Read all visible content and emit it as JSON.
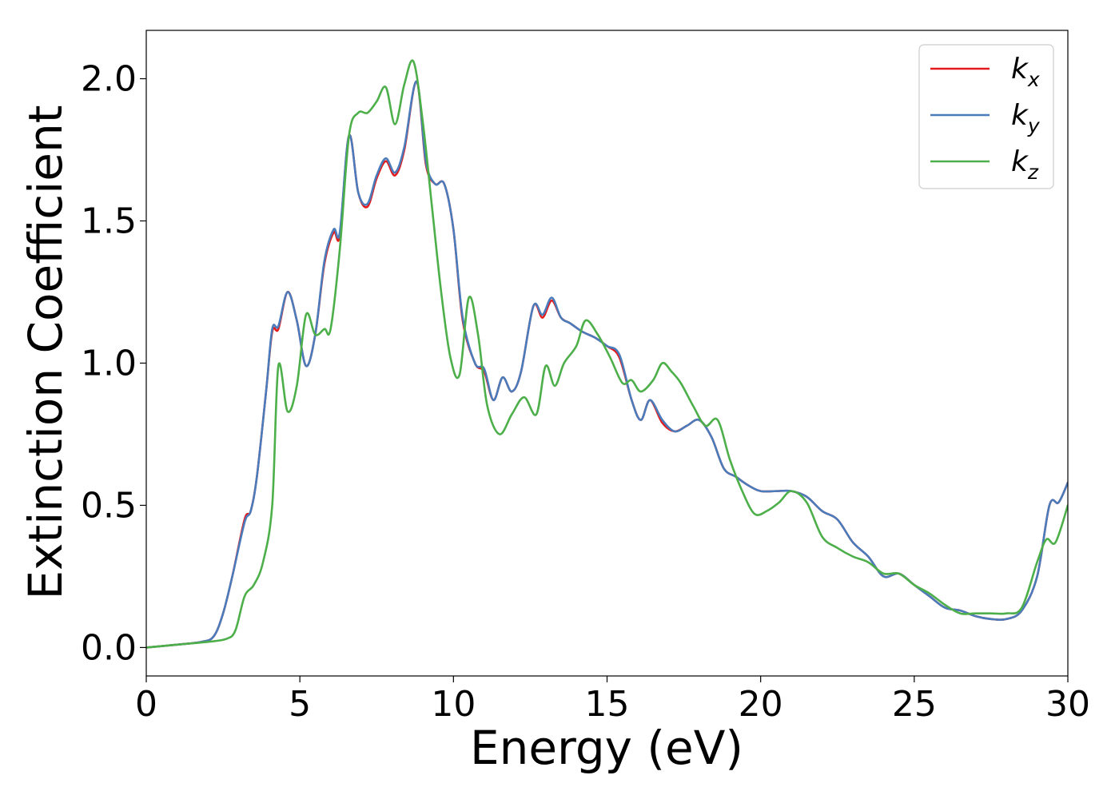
{
  "chart_data": {
    "type": "line",
    "title": "",
    "xlabel": "Energy (eV)",
    "ylabel": "Extinction Coefficient",
    "xlim": [
      0,
      30
    ],
    "ylim": [
      -0.1,
      2.17
    ],
    "xticks": [
      "0",
      "5",
      "10",
      "15",
      "20",
      "25",
      "30"
    ],
    "yticks": [
      "0.0",
      "0.5",
      "1.0",
      "1.5",
      "2.0"
    ],
    "grid": false,
    "legend_position": "top-right",
    "series": [
      {
        "name": "k_x",
        "label_main": "k",
        "label_sub": "x",
        "color": "#e41a1c",
        "x": [
          0,
          1,
          1.8,
          2.2,
          2.5,
          2.8,
          3.2,
          3.4,
          3.6,
          3.9,
          4.1,
          4.3,
          4.6,
          4.9,
          5.2,
          5.5,
          5.8,
          6.1,
          6.3,
          6.6,
          6.9,
          7.2,
          7.5,
          7.8,
          8.1,
          8.4,
          8.8,
          9.1,
          9.4,
          9.7,
          10.0,
          10.3,
          10.7,
          11.0,
          11.3,
          11.6,
          11.9,
          12.2,
          12.6,
          12.9,
          13.2,
          13.5,
          13.8,
          14.2,
          14.6,
          15.0,
          15.4,
          15.8,
          16.1,
          16.4,
          16.8,
          17.2,
          17.6,
          18.0,
          18.4,
          18.8,
          19.2,
          19.6,
          20.0,
          20.5,
          21.0,
          21.5,
          22.0,
          22.5,
          23.0,
          23.5,
          24.0,
          24.5,
          25.0,
          25.5,
          26.0,
          26.5,
          27.0,
          27.5,
          28.0,
          28.5,
          29.0,
          29.4,
          29.7,
          30.0
        ],
        "values": [
          0.0,
          0.01,
          0.02,
          0.04,
          0.12,
          0.25,
          0.45,
          0.48,
          0.6,
          0.9,
          1.11,
          1.12,
          1.25,
          1.15,
          0.99,
          1.1,
          1.35,
          1.46,
          1.45,
          1.8,
          1.6,
          1.55,
          1.65,
          1.71,
          1.66,
          1.75,
          1.99,
          1.7,
          1.63,
          1.63,
          1.47,
          1.15,
          1.0,
          0.97,
          0.87,
          0.95,
          0.9,
          0.97,
          1.2,
          1.16,
          1.22,
          1.16,
          1.14,
          1.11,
          1.09,
          1.06,
          1.02,
          0.87,
          0.8,
          0.87,
          0.79,
          0.76,
          0.78,
          0.8,
          0.74,
          0.63,
          0.6,
          0.57,
          0.55,
          0.55,
          0.55,
          0.53,
          0.48,
          0.45,
          0.37,
          0.32,
          0.25,
          0.26,
          0.22,
          0.18,
          0.14,
          0.13,
          0.11,
          0.1,
          0.1,
          0.13,
          0.25,
          0.5,
          0.51,
          0.58
        ]
      },
      {
        "name": "k_y",
        "label_main": "k",
        "label_sub": "y",
        "color": "#4a7bbb",
        "x": [
          0,
          1,
          1.8,
          2.2,
          2.5,
          2.8,
          3.2,
          3.4,
          3.6,
          3.9,
          4.1,
          4.3,
          4.6,
          4.9,
          5.2,
          5.5,
          5.8,
          6.1,
          6.3,
          6.6,
          6.9,
          7.2,
          7.5,
          7.8,
          8.1,
          8.4,
          8.8,
          9.1,
          9.4,
          9.7,
          10.0,
          10.3,
          10.7,
          11.0,
          11.3,
          11.6,
          11.9,
          12.2,
          12.6,
          12.9,
          13.2,
          13.5,
          13.8,
          14.2,
          14.6,
          15.0,
          15.4,
          15.8,
          16.1,
          16.4,
          16.8,
          17.2,
          17.6,
          18.0,
          18.4,
          18.8,
          19.2,
          19.6,
          20.0,
          20.5,
          21.0,
          21.5,
          22.0,
          22.5,
          23.0,
          23.5,
          24.0,
          24.5,
          25.0,
          25.5,
          26.0,
          26.5,
          27.0,
          27.5,
          28.0,
          28.5,
          29.0,
          29.4,
          29.7,
          30.0
        ],
        "values": [
          0.0,
          0.01,
          0.02,
          0.04,
          0.12,
          0.25,
          0.44,
          0.48,
          0.6,
          0.9,
          1.12,
          1.13,
          1.25,
          1.15,
          0.99,
          1.1,
          1.36,
          1.47,
          1.46,
          1.8,
          1.6,
          1.56,
          1.66,
          1.72,
          1.67,
          1.76,
          1.99,
          1.71,
          1.63,
          1.63,
          1.47,
          1.16,
          1.0,
          0.98,
          0.87,
          0.95,
          0.9,
          0.97,
          1.2,
          1.17,
          1.23,
          1.16,
          1.14,
          1.11,
          1.09,
          1.06,
          1.03,
          0.87,
          0.8,
          0.87,
          0.8,
          0.76,
          0.78,
          0.8,
          0.74,
          0.63,
          0.6,
          0.57,
          0.55,
          0.55,
          0.55,
          0.53,
          0.48,
          0.45,
          0.37,
          0.32,
          0.25,
          0.26,
          0.22,
          0.18,
          0.14,
          0.13,
          0.11,
          0.1,
          0.1,
          0.13,
          0.25,
          0.5,
          0.51,
          0.58
        ]
      },
      {
        "name": "k_z",
        "label_main": "k",
        "label_sub": "z",
        "color": "#4daf4a",
        "x": [
          0,
          1,
          2,
          2.6,
          2.9,
          3.2,
          3.5,
          3.8,
          4.1,
          4.3,
          4.6,
          4.9,
          5.2,
          5.5,
          5.8,
          6.0,
          6.3,
          6.6,
          6.9,
          7.2,
          7.5,
          7.8,
          8.1,
          8.4,
          8.7,
          9.0,
          9.3,
          9.6,
          9.9,
          10.2,
          10.5,
          10.8,
          11.1,
          11.5,
          11.9,
          12.3,
          12.7,
          13.0,
          13.3,
          13.6,
          14.0,
          14.3,
          14.7,
          15.1,
          15.5,
          15.8,
          16.1,
          16.5,
          16.8,
          17.1,
          17.4,
          17.8,
          18.2,
          18.6,
          19.0,
          19.4,
          19.8,
          20.2,
          20.6,
          21.0,
          21.5,
          22.0,
          22.5,
          23.0,
          23.5,
          24.0,
          24.5,
          25.0,
          25.5,
          26.0,
          26.5,
          27.0,
          27.5,
          28.0,
          28.5,
          29.0,
          29.3,
          29.6,
          30.0
        ],
        "values": [
          0.0,
          0.01,
          0.02,
          0.03,
          0.06,
          0.18,
          0.22,
          0.3,
          0.5,
          0.99,
          0.83,
          0.92,
          1.17,
          1.1,
          1.12,
          1.12,
          1.4,
          1.8,
          1.88,
          1.88,
          1.92,
          1.97,
          1.84,
          1.98,
          2.06,
          1.85,
          1.55,
          1.25,
          1.02,
          0.96,
          1.23,
          1.1,
          0.85,
          0.75,
          0.82,
          0.88,
          0.82,
          0.99,
          0.92,
          1.0,
          1.06,
          1.15,
          1.1,
          1.02,
          0.93,
          0.94,
          0.9,
          0.94,
          1.0,
          0.97,
          0.93,
          0.85,
          0.78,
          0.8,
          0.66,
          0.55,
          0.47,
          0.48,
          0.51,
          0.55,
          0.51,
          0.39,
          0.35,
          0.32,
          0.3,
          0.26,
          0.26,
          0.22,
          0.19,
          0.15,
          0.12,
          0.12,
          0.12,
          0.12,
          0.14,
          0.3,
          0.38,
          0.37,
          0.5
        ]
      }
    ]
  }
}
